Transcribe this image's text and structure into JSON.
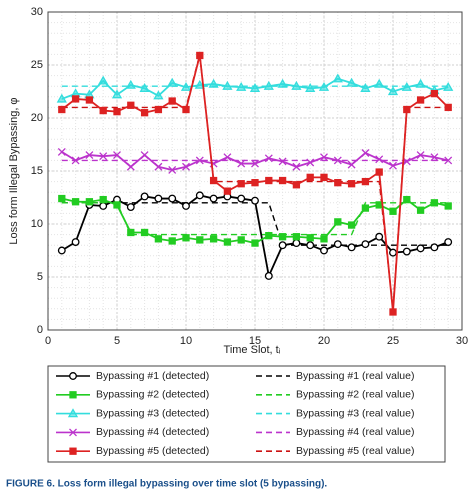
{
  "chart_data": {
    "type": "line",
    "x_label": "Time Slot, tᵢ",
    "y_label": "Loss form Illegal Bypassing, φ",
    "caption": "FIGURE 6. Loss form illegal bypassing over time slot (5 bypassing).",
    "x": [
      1,
      2,
      3,
      4,
      5,
      6,
      7,
      8,
      9,
      10,
      11,
      12,
      13,
      14,
      15,
      16,
      17,
      18,
      19,
      20,
      21,
      22,
      23,
      24,
      25,
      26,
      27,
      28,
      29
    ],
    "xlim": [
      0,
      30
    ],
    "xticks": [
      0,
      5,
      10,
      15,
      20,
      25,
      30
    ],
    "ylim": [
      0,
      30
    ],
    "yticks": [
      0,
      5,
      10,
      15,
      20,
      25,
      30
    ],
    "grid": true,
    "legend": "bottom",
    "series": [
      {
        "name": "Bypassing #1 (detected)",
        "color": "#000000",
        "marker": "circle",
        "style": "solid",
        "values": [
          7.5,
          8.3,
          11.8,
          11.7,
          12.3,
          11.6,
          12.6,
          12.4,
          12.4,
          11.7,
          12.7,
          12.4,
          12.6,
          12.4,
          12.2,
          5.1,
          8.0,
          8.2,
          8.0,
          7.5,
          8.1,
          7.8,
          8.1,
          8.8,
          7.3,
          7.4,
          7.7,
          7.8,
          8.3
        ]
      },
      {
        "name": "Bypassing #2 (detected)",
        "color": "#22cc22",
        "marker": "square",
        "style": "solid",
        "values": [
          12.4,
          12.1,
          12.1,
          12.3,
          11.8,
          9.2,
          9.2,
          8.6,
          8.4,
          8.7,
          8.5,
          8.6,
          8.3,
          8.5,
          8.2,
          8.9,
          8.8,
          8.8,
          8.7,
          8.6,
          10.2,
          9.9,
          11.5,
          11.8,
          11.2,
          12.3,
          11.3,
          12.0,
          11.7
        ]
      },
      {
        "name": "Bypassing #3 (detected)",
        "color": "#33dddd",
        "marker": "triangle",
        "style": "solid",
        "values": [
          21.8,
          22.3,
          22.2,
          23.5,
          22.2,
          23.1,
          22.8,
          22.1,
          23.3,
          22.9,
          23.1,
          23.2,
          23.0,
          22.9,
          22.8,
          23.0,
          23.2,
          23.0,
          22.8,
          22.9,
          23.7,
          23.3,
          22.8,
          23.2,
          22.5,
          22.9,
          23.2,
          22.6,
          22.9
        ]
      },
      {
        "name": "Bypassing #4 (detected)",
        "color": "#bb33cc",
        "marker": "x",
        "style": "solid",
        "values": [
          16.8,
          16.0,
          16.5,
          16.4,
          16.5,
          15.4,
          16.5,
          15.4,
          15.1,
          15.4,
          16.0,
          15.7,
          16.3,
          15.7,
          15.7,
          16.2,
          15.9,
          15.4,
          15.8,
          16.3,
          16.0,
          15.6,
          16.7,
          16.1,
          15.5,
          15.9,
          16.5,
          16.3,
          16.0
        ]
      },
      {
        "name": "Bypassing #5 (detected)",
        "color": "#dd2222",
        "marker": "square",
        "style": "solid",
        "values": [
          20.8,
          21.8,
          21.7,
          20.7,
          20.6,
          21.2,
          20.5,
          20.8,
          21.6,
          20.8,
          25.9,
          14.1,
          13.1,
          13.8,
          13.9,
          14.1,
          14.1,
          13.7,
          14.4,
          14.4,
          13.9,
          13.8,
          14.0,
          14.9,
          1.7,
          20.8,
          21.7,
          22.3,
          21.0
        ]
      },
      {
        "name": "Bypassing #1 (real value)",
        "color": "#000000",
        "style": "dashed",
        "values": [
          12,
          12,
          12,
          12,
          12,
          12,
          12,
          12,
          12,
          12,
          12,
          12,
          12,
          12,
          12,
          12,
          8,
          8,
          8,
          8,
          8,
          8,
          8,
          8,
          8,
          8,
          8,
          8,
          8
        ]
      },
      {
        "name": "Bypassing #2 (real value)",
        "color": "#22cc22",
        "style": "dashed",
        "values": [
          12,
          12,
          12,
          12,
          12,
          9,
          9,
          9,
          9,
          9,
          9,
          9,
          9,
          9,
          9,
          9,
          9,
          9,
          9,
          9,
          9,
          9,
          12,
          12,
          12,
          12,
          12,
          12,
          12
        ]
      },
      {
        "name": "Bypassing #3 (real value)",
        "color": "#33dddd",
        "style": "dashed",
        "values": [
          23,
          23,
          23,
          23,
          23,
          23,
          23,
          23,
          23,
          23,
          23,
          23,
          23,
          23,
          23,
          23,
          23,
          23,
          23,
          23,
          23,
          23,
          23,
          23,
          23,
          23,
          23,
          23,
          23
        ]
      },
      {
        "name": "Bypassing #4 (real value)",
        "color": "#bb33cc",
        "style": "dashed",
        "values": [
          16,
          16,
          16,
          16,
          16,
          16,
          16,
          16,
          16,
          16,
          16,
          16,
          16,
          16,
          16,
          16,
          16,
          16,
          16,
          16,
          16,
          16,
          16,
          16,
          16,
          16,
          16,
          16,
          16
        ]
      },
      {
        "name": "Bypassing #5 (real value)",
        "color": "#cc1111",
        "style": "dashed",
        "values": [
          21,
          21,
          21,
          21,
          21,
          21,
          21,
          21,
          21,
          21,
          26,
          14,
          14,
          14,
          14,
          14,
          14,
          14,
          14,
          14,
          14,
          14,
          14,
          14,
          2,
          21,
          21,
          21,
          21
        ]
      }
    ]
  }
}
